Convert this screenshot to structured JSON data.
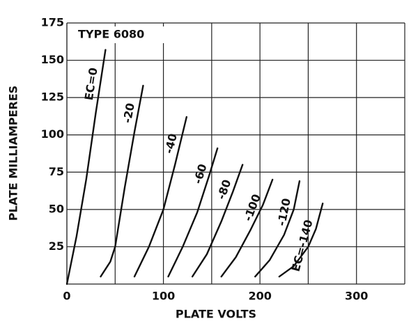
{
  "chart_data": {
    "type": "line",
    "annotation": "TYPE 6080",
    "xlabel": "PLATE VOLTS",
    "ylabel": "PLATE MILLIAMPERES",
    "xlim": [
      0,
      350
    ],
    "ylim": [
      0,
      175
    ],
    "xticks": [
      0,
      100,
      200,
      300
    ],
    "yticks": [
      25,
      50,
      75,
      100,
      125,
      150,
      175
    ],
    "xgrid": [
      0,
      50,
      100,
      150,
      200,
      250,
      300,
      350
    ],
    "grid": true,
    "color": "#111111",
    "series": [
      {
        "name": "EC=0",
        "x": [
          0,
          10,
          20,
          30,
          40
        ],
        "values": [
          0,
          32,
          70,
          115,
          157
        ]
      },
      {
        "name": "-20",
        "x": [
          35,
          45,
          50,
          60,
          70,
          79
        ],
        "values": [
          5,
          15,
          25,
          65,
          102,
          133
        ]
      },
      {
        "name": "-40",
        "x": [
          70,
          85,
          100,
          112,
          124
        ],
        "values": [
          5,
          25,
          50,
          80,
          112
        ]
      },
      {
        "name": "-60",
        "x": [
          105,
          120,
          135,
          147,
          156
        ],
        "values": [
          5,
          25,
          48,
          72,
          91
        ]
      },
      {
        "name": "-80",
        "x": [
          130,
          145,
          160,
          172,
          182
        ],
        "values": [
          5,
          20,
          42,
          62,
          80
        ]
      },
      {
        "name": "-100",
        "x": [
          160,
          175,
          190,
          203,
          213
        ],
        "values": [
          5,
          18,
          36,
          53,
          70
        ]
      },
      {
        "name": "-120",
        "x": [
          195,
          210,
          225,
          235,
          241
        ],
        "values": [
          5,
          16,
          33,
          50,
          69
        ]
      },
      {
        "name": "EC=-140",
        "x": [
          220,
          235,
          250,
          258,
          265
        ],
        "values": [
          5,
          12,
          25,
          37,
          54
        ]
      }
    ]
  }
}
